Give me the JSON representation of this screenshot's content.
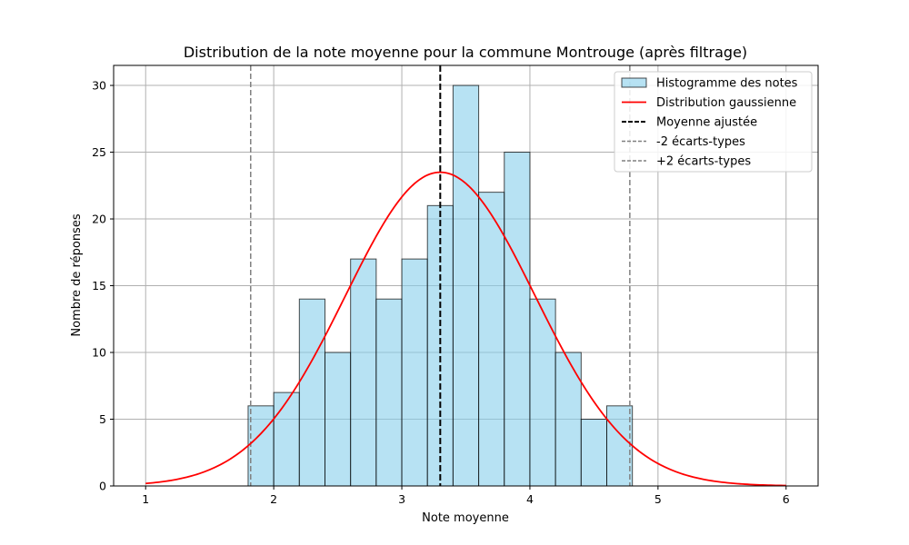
{
  "colors": {
    "bar_fill": "#87ceeb",
    "bar_edge": "#000000",
    "gauss_line": "#ff0000",
    "mean_line": "#000000",
    "sigma_line": "#808080",
    "grid": "#b0b0b0"
  },
  "chart_data": {
    "type": "bar",
    "title": "Distribution de la note moyenne pour la commune Montrouge (après filtrage)",
    "xlabel": "Note moyenne",
    "ylabel": "Nombre de réponses",
    "xlim": [
      0.75,
      6.25
    ],
    "ylim": [
      0,
      31.5
    ],
    "xticks": [
      1,
      2,
      3,
      4,
      5,
      6
    ],
    "yticks": [
      0,
      5,
      10,
      15,
      20,
      25,
      30
    ],
    "grid": true,
    "legend_position": "top-right",
    "legend": [
      "Histogramme des notes",
      "Distribution gaussienne",
      "Moyenne ajustée",
      "-2 écarts-types",
      "+2 écarts-types"
    ],
    "histogram": {
      "bin_edges": [
        1.8,
        2.0,
        2.2,
        2.4,
        2.6,
        2.8,
        3.0,
        3.2,
        3.4,
        3.6,
        3.8,
        4.0,
        4.2,
        4.4,
        4.6,
        4.8
      ],
      "counts": [
        6,
        7,
        14,
        10,
        17,
        14,
        17,
        21,
        30,
        22,
        25,
        14,
        10,
        5,
        6
      ]
    },
    "gaussian": {
      "mean": 3.3,
      "std": 0.74,
      "peak": 23.5,
      "x_range": [
        1,
        6
      ]
    },
    "mean_line": 3.3,
    "minus_2_std": 1.82,
    "plus_2_std": 4.78
  }
}
